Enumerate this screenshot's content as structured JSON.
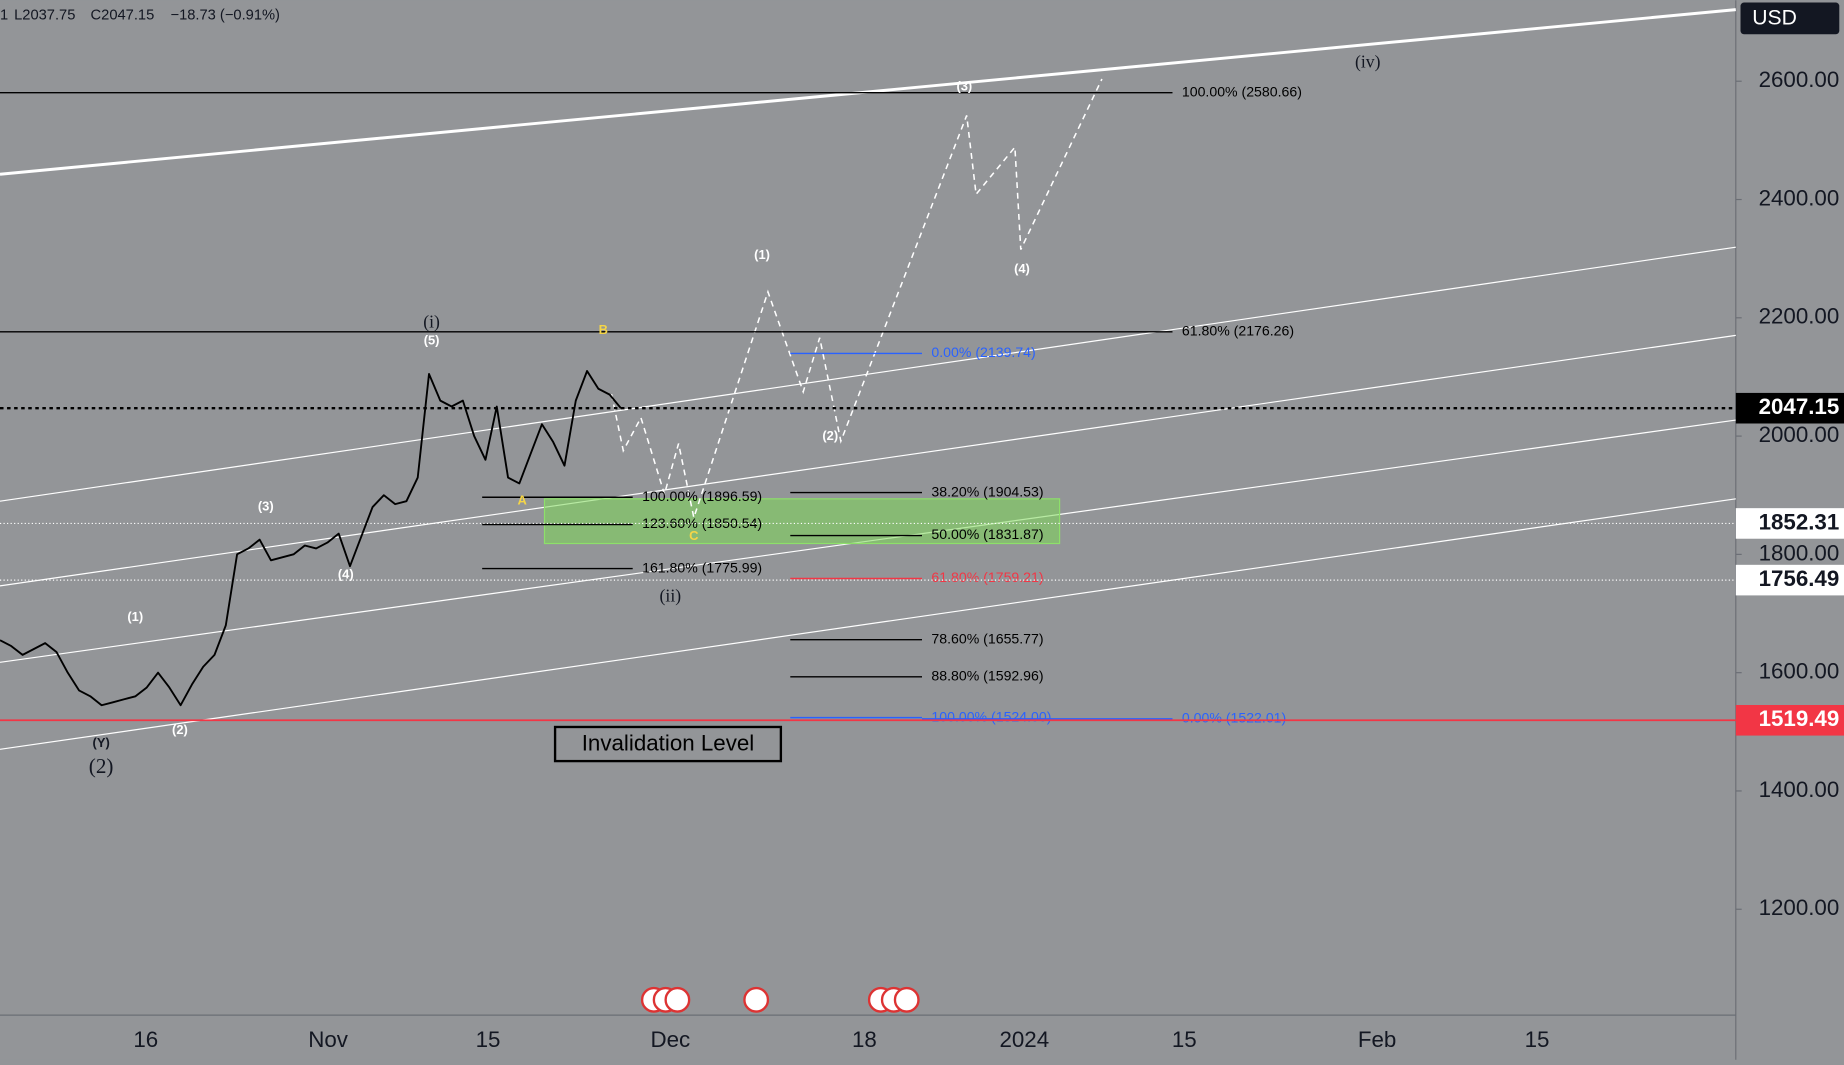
{
  "header": {
    "symbol": "1",
    "low": "L2037.75",
    "close": "C2047.15",
    "change": "−18.73 (−0.91%)"
  },
  "chart_data": {
    "type": "line",
    "currency": "USD",
    "color": "#000000",
    "values": [
      1655,
      1645,
      1630,
      1640,
      1650,
      1635,
      1600,
      1570,
      1560,
      1545,
      1550,
      1555,
      1560,
      1575,
      1600,
      1575,
      1545,
      1580,
      1610,
      1630,
      1680,
      1800,
      1810,
      1825,
      1790,
      1795,
      1800,
      1815,
      1810,
      1820,
      1835,
      1780,
      1830,
      1880,
      1900,
      1885,
      1890,
      1930,
      2105,
      2060,
      2050,
      2060,
      2000,
      1960,
      2050,
      1930,
      1920,
      1970,
      2020,
      1990,
      1950,
      2060,
      2110,
      2080,
      2070,
      2047
    ],
    "ylim": [
      1021,
      2737
    ],
    "yticks": [
      {
        "value": 1200,
        "label": "1200.00"
      },
      {
        "value": 1400,
        "label": "1400.00"
      },
      {
        "value": 1600,
        "label": "1600.00"
      },
      {
        "value": 1800,
        "label": "1800.00"
      },
      {
        "value": 2000,
        "label": "2000.00"
      },
      {
        "value": 2200,
        "label": "2200.00"
      },
      {
        "value": 2400,
        "label": "2400.00"
      },
      {
        "value": 2600,
        "label": "2600.00"
      }
    ],
    "xticks": [
      "16",
      "Nov",
      "15",
      "Dec",
      "18",
      "2024",
      "15",
      "Feb",
      "15"
    ],
    "price_labels": [
      {
        "value": 2047.15,
        "label": "2047.15",
        "color": "#000000"
      },
      {
        "value": 1852.31,
        "label": "1852.31",
        "color": "#ffffff"
      },
      {
        "value": 1756.49,
        "label": "1756.49",
        "color": "#ffffff"
      },
      {
        "value": 1519.49,
        "label": "1519.49",
        "color": "#f23645"
      }
    ],
    "fib_levels": [
      {
        "value": 2580.66,
        "label": "100.00% (2580.66)",
        "color": "#000000"
      },
      {
        "value": 2176.26,
        "label": "61.80% (2176.26)",
        "color": "#000000"
      },
      {
        "value": 2139.74,
        "label": "0.00% (2139.74)",
        "color": "#2962ff"
      },
      {
        "value": 1904.53,
        "label": "38.20% (1904.53)",
        "color": "#000000"
      },
      {
        "value": 1831.87,
        "label": "50.00% (1831.87)",
        "color": "#000000"
      },
      {
        "value": 1759.21,
        "label": "61.80% (1759.21)",
        "color": "#f23645"
      },
      {
        "value": 1655.77,
        "label": "78.60% (1655.77)",
        "color": "#000000"
      },
      {
        "value": 1592.96,
        "label": "88.80% (1592.96)",
        "color": "#000000"
      },
      {
        "value": 1524.0,
        "label": "100.00% (1524.00)",
        "color": "#2962ff"
      },
      {
        "value": 1522.01,
        "label": "0.00% (1522.01)",
        "color": "#2962ff"
      },
      {
        "value": 1896.59,
        "label": "100.00% (1896.59)",
        "color": "#000000"
      },
      {
        "value": 1850.54,
        "label": "123.60% (1850.54)",
        "color": "#000000"
      },
      {
        "value": 1775.99,
        "label": "161.80% (1775.99)",
        "color": "#000000"
      }
    ],
    "wave_labels": [
      "(i)",
      "(5)",
      "B",
      "(3)",
      "A",
      "C",
      "(4)",
      "(1)",
      "(ii)",
      "(Y)",
      "(2)",
      "(2)",
      "(1)",
      "(3)",
      "(4)",
      "(2)",
      "(iv)"
    ],
    "annotation": "Invalidation Level"
  }
}
